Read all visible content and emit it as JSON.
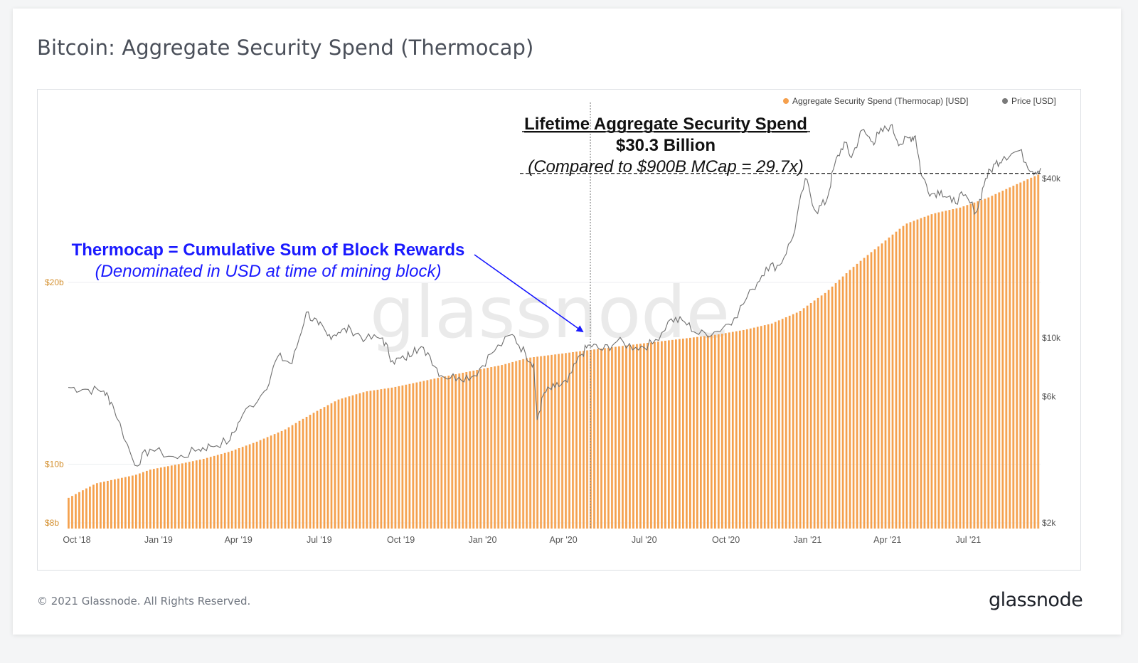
{
  "title": "Bitcoin: Aggregate Security Spend (Thermocap)",
  "footer": "© 2021 Glassnode. All Rights Reserved.",
  "brand": "glassnode",
  "colors": {
    "thermocap": "#f5a04d",
    "price": "#7a7a7a",
    "annotation_blue": "#1a1aff",
    "annotation_black": "#111111"
  },
  "chart_data": {
    "type": "bar",
    "watermark": "glassnode",
    "legend": [
      {
        "label": "Aggregate Security Spend (Thermocap) [USD]",
        "color": "#f5a04d"
      },
      {
        "label": "Price [USD]",
        "color": "#7a7a7a"
      }
    ],
    "legend_position": "top-right",
    "x_ticks": [
      "Oct '18",
      "Jan '19",
      "Apr '19",
      "Jul '19",
      "Oct '19",
      "Jan '20",
      "Apr '20",
      "Jul '20",
      "Oct '20",
      "Jan '21",
      "Apr '21",
      "Jul '21"
    ],
    "y_left": {
      "scale": "log",
      "ticks": [
        "$8b",
        "$10b",
        "$20b"
      ],
      "tick_values": [
        8,
        10,
        20
      ],
      "unit": "billion USD"
    },
    "y_right": {
      "scale": "log",
      "ticks": [
        "$2k",
        "$6k",
        "$10k",
        "$40k"
      ],
      "tick_values": [
        2000,
        6000,
        10000,
        40000
      ],
      "unit": "USD"
    },
    "series": [
      {
        "name": "Aggregate Security Spend (Thermocap) [USD]",
        "type": "bar",
        "axis": "left",
        "x": [
          "2018-10-01",
          "2018-11-01",
          "2018-12-15",
          "2019-01-01",
          "2019-02-01",
          "2019-03-01",
          "2019-04-01",
          "2019-05-01",
          "2019-06-01",
          "2019-07-01",
          "2019-08-01",
          "2019-09-01",
          "2019-10-01",
          "2019-11-01",
          "2019-12-01",
          "2020-01-01",
          "2020-02-01",
          "2020-03-01",
          "2020-04-01",
          "2020-05-01",
          "2020-06-01",
          "2020-07-01",
          "2020-08-01",
          "2020-09-01",
          "2020-10-01",
          "2020-11-01",
          "2020-12-01",
          "2021-01-01",
          "2021-02-01",
          "2021-03-01",
          "2021-04-01",
          "2021-05-01",
          "2021-06-01",
          "2021-07-01",
          "2021-08-01",
          "2021-09-01",
          "2021-09-30"
        ],
        "values": [
          8.8,
          9.3,
          9.6,
          9.8,
          10.0,
          10.2,
          10.5,
          10.9,
          11.4,
          12.1,
          12.8,
          13.2,
          13.4,
          13.7,
          14.0,
          14.3,
          14.6,
          15.0,
          15.2,
          15.4,
          15.6,
          15.8,
          16.0,
          16.2,
          16.4,
          16.7,
          17.1,
          17.9,
          19.3,
          21.1,
          23.0,
          25.0,
          26.0,
          26.6,
          27.6,
          29.0,
          30.3
        ]
      },
      {
        "name": "Price [USD]",
        "type": "line",
        "axis": "right",
        "x": [
          "2018-10-01",
          "2018-10-20",
          "2018-11-10",
          "2018-11-20",
          "2018-12-15",
          "2019-01-01",
          "2019-02-01",
          "2019-02-25",
          "2019-03-10",
          "2019-04-01",
          "2019-04-15",
          "2019-05-10",
          "2019-05-25",
          "2019-06-10",
          "2019-06-26",
          "2019-07-10",
          "2019-07-20",
          "2019-08-01",
          "2019-08-15",
          "2019-09-01",
          "2019-09-20",
          "2019-10-01",
          "2019-10-15",
          "2019-10-26",
          "2019-11-10",
          "2019-11-25",
          "2019-12-15",
          "2020-01-01",
          "2020-01-20",
          "2020-02-13",
          "2020-02-28",
          "2020-03-08",
          "2020-03-12",
          "2020-03-20",
          "2020-04-01",
          "2020-04-15",
          "2020-04-30",
          "2020-05-10",
          "2020-05-25",
          "2020-06-10",
          "2020-07-01",
          "2020-07-20",
          "2020-08-10",
          "2020-08-25",
          "2020-09-10",
          "2020-10-01",
          "2020-10-20",
          "2020-11-10",
          "2020-11-25",
          "2020-12-10",
          "2020-12-25",
          "2021-01-08",
          "2021-01-20",
          "2021-02-01",
          "2021-02-10",
          "2021-02-21",
          "2021-03-01",
          "2021-03-13",
          "2021-03-25",
          "2021-04-01",
          "2021-04-14",
          "2021-04-25",
          "2021-05-05",
          "2021-05-12",
          "2021-05-19",
          "2021-05-30",
          "2021-06-10",
          "2021-06-22",
          "2021-07-05",
          "2021-07-20",
          "2021-07-30",
          "2021-08-10",
          "2021-08-20",
          "2021-09-06",
          "2021-09-21",
          "2021-09-30"
        ],
        "values": [
          6500,
          6400,
          6300,
          5600,
          3300,
          3800,
          3500,
          3800,
          3900,
          4100,
          5100,
          6300,
          8500,
          8000,
          12500,
          11200,
          10200,
          10500,
          10800,
          9900,
          10000,
          8200,
          8300,
          9200,
          8800,
          7200,
          7100,
          7200,
          8700,
          10300,
          8700,
          8000,
          4900,
          6200,
          6500,
          6800,
          8600,
          9400,
          9000,
          9700,
          9200,
          9500,
          11800,
          11500,
          10300,
          10600,
          11900,
          15300,
          18500,
          18800,
          24000,
          40000,
          30000,
          33000,
          45000,
          55000,
          48000,
          61000,
          55000,
          59000,
          63500,
          54000,
          57000,
          58000,
          41000,
          35000,
          36000,
          32500,
          34500,
          30000,
          40000,
          45500,
          48500,
          51000,
          42500,
          43800
        ]
      }
    ],
    "annotations": [
      {
        "text": "Lifetime Aggregate Security Spend",
        "style": "bold-underline"
      },
      {
        "text": "$30.3 Billion",
        "style": "bold"
      },
      {
        "text": "(Compared to $900B MCap = 29.7x)",
        "style": "italic"
      },
      {
        "text": "Thermocap = Cumulative Sum of Block Rewards",
        "style": "bold-blue"
      },
      {
        "text": "(Denominated in USD at time of mining block)",
        "style": "italic-blue"
      }
    ],
    "vertical_marker_date": "2020-05-11"
  }
}
